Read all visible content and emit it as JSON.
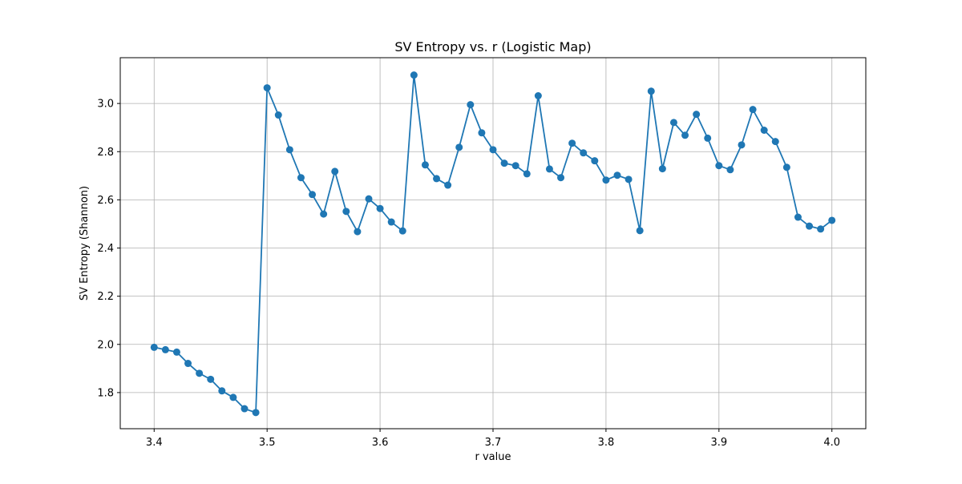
{
  "chart_data": {
    "type": "line",
    "title": "SV Entropy vs. r (Logistic Map)",
    "xlabel": "r value",
    "ylabel": "SV Entropy (Shannon)",
    "xlim": [
      3.37,
      4.03
    ],
    "ylim": [
      1.65,
      3.19
    ],
    "xticks": [
      3.4,
      3.5,
      3.6,
      3.7,
      3.8,
      3.9,
      4.0
    ],
    "xtick_labels": [
      "3.4",
      "3.5",
      "3.6",
      "3.7",
      "3.8",
      "3.9",
      "4.0"
    ],
    "yticks": [
      1.8,
      2.0,
      2.2,
      2.4,
      2.6,
      2.8,
      3.0
    ],
    "ytick_labels": [
      "1.8",
      "2.0",
      "2.2",
      "2.4",
      "2.6",
      "2.8",
      "3.0"
    ],
    "grid": true,
    "marker": "circle",
    "color": "#1f77b4",
    "series": [
      {
        "x": [
          3.4,
          3.41,
          3.42,
          3.43,
          3.44,
          3.45,
          3.46,
          3.47,
          3.48,
          3.49,
          3.5,
          3.51,
          3.52,
          3.53,
          3.54,
          3.55,
          3.56,
          3.57,
          3.58,
          3.59,
          3.6,
          3.61,
          3.62,
          3.63,
          3.64,
          3.65,
          3.66,
          3.67,
          3.68,
          3.69,
          3.7,
          3.71,
          3.72,
          3.73,
          3.74,
          3.75,
          3.76,
          3.77,
          3.78,
          3.79,
          3.8,
          3.81,
          3.82,
          3.83,
          3.84,
          3.85,
          3.86,
          3.87,
          3.88,
          3.89,
          3.9,
          3.91,
          3.92,
          3.93,
          3.94,
          3.95,
          3.96,
          3.97,
          3.98,
          3.99,
          4.0
        ],
        "y": [
          1.988,
          1.978,
          1.968,
          1.921,
          1.88,
          1.855,
          1.807,
          1.78,
          1.733,
          1.717,
          3.065,
          2.952,
          2.808,
          2.692,
          2.622,
          2.541,
          2.718,
          2.552,
          2.468,
          2.604,
          2.564,
          2.508,
          2.471,
          3.118,
          2.745,
          2.688,
          2.661,
          2.818,
          2.995,
          2.878,
          2.808,
          2.752,
          2.742,
          2.708,
          3.032,
          2.728,
          2.692,
          2.835,
          2.795,
          2.762,
          2.682,
          2.702,
          2.685,
          2.472,
          3.051,
          2.729,
          2.921,
          2.868,
          2.955,
          2.856,
          2.742,
          2.725,
          2.828,
          2.975,
          2.889,
          2.842,
          2.735,
          2.528,
          2.491,
          2.479,
          2.515
        ]
      }
    ]
  }
}
